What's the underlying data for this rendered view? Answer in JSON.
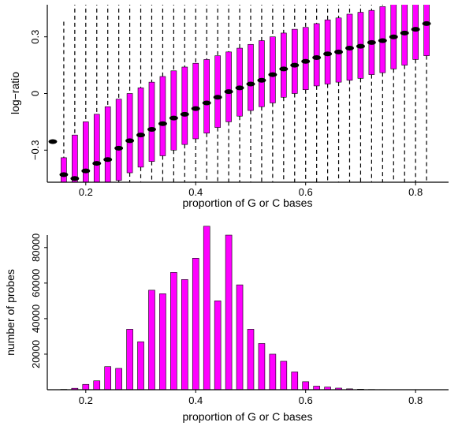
{
  "chart_data": [
    {
      "type": "boxplot",
      "xlabel": "proportion of G or C bases",
      "ylabel": "log−ratio",
      "xlim": [
        0.13,
        0.86
      ],
      "ylim": [
        -0.47,
        0.47
      ],
      "xticks": [
        0.2,
        0.4,
        0.6,
        0.8
      ],
      "xtick_labels": [
        "0.2",
        "0.4",
        "0.6",
        "0.8"
      ],
      "yticks": [
        -0.3,
        0,
        0.3
      ],
      "ytick_labels": [
        "−0.3",
        "0",
        "0.3"
      ],
      "colors": {
        "box": "#ff00ff",
        "median": "#000000",
        "whisker": "#000000"
      },
      "boxes": [
        {
          "x": 0.14,
          "q1": -0.255,
          "median": -0.255,
          "q3": -0.255,
          "low": -0.255,
          "high": -0.255
        },
        {
          "x": 0.16,
          "q1": -0.5,
          "median": -0.43,
          "q3": -0.34,
          "low": -0.5,
          "high": 0.38
        },
        {
          "x": 0.18,
          "q1": -0.55,
          "median": -0.45,
          "q3": -0.22,
          "low": -0.6,
          "high": 0.6
        },
        {
          "x": 0.2,
          "q1": -0.52,
          "median": -0.41,
          "q3": -0.15,
          "low": -0.6,
          "high": 0.6
        },
        {
          "x": 0.22,
          "q1": -0.5,
          "median": -0.37,
          "q3": -0.11,
          "low": -0.6,
          "high": 0.6
        },
        {
          "x": 0.24,
          "q1": -0.49,
          "median": -0.35,
          "q3": -0.07,
          "low": -0.6,
          "high": 0.6
        },
        {
          "x": 0.26,
          "q1": -0.46,
          "median": -0.29,
          "q3": -0.03,
          "low": -0.6,
          "high": 0.6
        },
        {
          "x": 0.28,
          "q1": -0.42,
          "median": -0.25,
          "q3": 0.0,
          "low": -0.6,
          "high": 0.6
        },
        {
          "x": 0.3,
          "q1": -0.39,
          "median": -0.22,
          "q3": 0.03,
          "low": -0.6,
          "high": 0.6
        },
        {
          "x": 0.32,
          "q1": -0.36,
          "median": -0.19,
          "q3": 0.06,
          "low": -0.6,
          "high": 0.6
        },
        {
          "x": 0.34,
          "q1": -0.33,
          "median": -0.16,
          "q3": 0.09,
          "low": -0.6,
          "high": 0.6
        },
        {
          "x": 0.36,
          "q1": -0.3,
          "median": -0.13,
          "q3": 0.12,
          "low": -0.6,
          "high": 0.6
        },
        {
          "x": 0.38,
          "q1": -0.27,
          "median": -0.11,
          "q3": 0.14,
          "low": -0.6,
          "high": 0.6
        },
        {
          "x": 0.4,
          "q1": -0.24,
          "median": -0.08,
          "q3": 0.16,
          "low": -0.6,
          "high": 0.6
        },
        {
          "x": 0.42,
          "q1": -0.21,
          "median": -0.05,
          "q3": 0.18,
          "low": -0.6,
          "high": 0.6
        },
        {
          "x": 0.44,
          "q1": -0.18,
          "median": -0.02,
          "q3": 0.2,
          "low": -0.6,
          "high": 0.6
        },
        {
          "x": 0.46,
          "q1": -0.15,
          "median": 0.01,
          "q3": 0.22,
          "low": -0.6,
          "high": 0.6
        },
        {
          "x": 0.48,
          "q1": -0.12,
          "median": 0.03,
          "q3": 0.24,
          "low": -0.6,
          "high": 0.6
        },
        {
          "x": 0.5,
          "q1": -0.09,
          "median": 0.05,
          "q3": 0.26,
          "low": -0.6,
          "high": 0.6
        },
        {
          "x": 0.52,
          "q1": -0.07,
          "median": 0.07,
          "q3": 0.28,
          "low": -0.6,
          "high": 0.6
        },
        {
          "x": 0.54,
          "q1": -0.05,
          "median": 0.1,
          "q3": 0.3,
          "low": -0.6,
          "high": 0.6
        },
        {
          "x": 0.56,
          "q1": -0.02,
          "median": 0.13,
          "q3": 0.32,
          "low": -0.6,
          "high": 0.6
        },
        {
          "x": 0.58,
          "q1": 0.0,
          "median": 0.15,
          "q3": 0.34,
          "low": -0.6,
          "high": 0.6
        },
        {
          "x": 0.6,
          "q1": 0.02,
          "median": 0.17,
          "q3": 0.35,
          "low": -0.6,
          "high": 0.6
        },
        {
          "x": 0.62,
          "q1": 0.04,
          "median": 0.19,
          "q3": 0.37,
          "low": -0.6,
          "high": 0.6
        },
        {
          "x": 0.64,
          "q1": 0.05,
          "median": 0.21,
          "q3": 0.39,
          "low": -0.6,
          "high": 0.6
        },
        {
          "x": 0.66,
          "q1": 0.06,
          "median": 0.22,
          "q3": 0.4,
          "low": -0.6,
          "high": 0.6
        },
        {
          "x": 0.68,
          "q1": 0.07,
          "median": 0.24,
          "q3": 0.42,
          "low": -0.6,
          "high": 0.6
        },
        {
          "x": 0.7,
          "q1": 0.08,
          "median": 0.25,
          "q3": 0.43,
          "low": -0.6,
          "high": 0.6
        },
        {
          "x": 0.72,
          "q1": 0.1,
          "median": 0.27,
          "q3": 0.44,
          "low": -0.6,
          "high": 0.6
        },
        {
          "x": 0.74,
          "q1": 0.11,
          "median": 0.28,
          "q3": 0.46,
          "low": -0.6,
          "high": 0.6
        },
        {
          "x": 0.76,
          "q1": 0.13,
          "median": 0.3,
          "q3": 0.48,
          "low": -0.6,
          "high": 0.6
        },
        {
          "x": 0.78,
          "q1": 0.15,
          "median": 0.32,
          "q3": 0.5,
          "low": -0.6,
          "high": 0.6
        },
        {
          "x": 0.8,
          "q1": 0.18,
          "median": 0.34,
          "q3": 0.52,
          "low": -0.6,
          "high": 0.6
        },
        {
          "x": 0.82,
          "q1": 0.2,
          "median": 0.37,
          "q3": 0.55,
          "low": -0.6,
          "high": 0.6
        }
      ]
    },
    {
      "type": "bar",
      "xlabel": "proportion of G or C bases",
      "ylabel": "number of probes",
      "xlim": [
        0.13,
        0.86
      ],
      "ylim": [
        0,
        95000
      ],
      "xticks": [
        0.2,
        0.4,
        0.6,
        0.8
      ],
      "xtick_labels": [
        "0.2",
        "0.4",
        "0.6",
        "0.8"
      ],
      "yticks": [
        20000,
        40000,
        60000,
        80000
      ],
      "ytick_labels": [
        "20000",
        "40000",
        "60000",
        "80000"
      ],
      "color": "#ff00ff",
      "x": [
        0.16,
        0.18,
        0.2,
        0.22,
        0.24,
        0.26,
        0.28,
        0.3,
        0.32,
        0.34,
        0.36,
        0.38,
        0.4,
        0.42,
        0.44,
        0.46,
        0.48,
        0.5,
        0.52,
        0.54,
        0.56,
        0.58,
        0.6,
        0.62,
        0.64,
        0.66,
        0.68,
        0.7,
        0.72,
        0.74,
        0.76,
        0.78,
        0.8,
        0.82
      ],
      "values": [
        200,
        800,
        3000,
        5000,
        13000,
        12000,
        34000,
        27000,
        56000,
        54000,
        66000,
        62000,
        74000,
        92000,
        50000,
        87000,
        59000,
        34000,
        26000,
        20000,
        16000,
        10000,
        4500,
        2000,
        1500,
        900,
        500,
        300,
        150,
        100,
        60,
        40,
        20,
        10
      ]
    }
  ]
}
